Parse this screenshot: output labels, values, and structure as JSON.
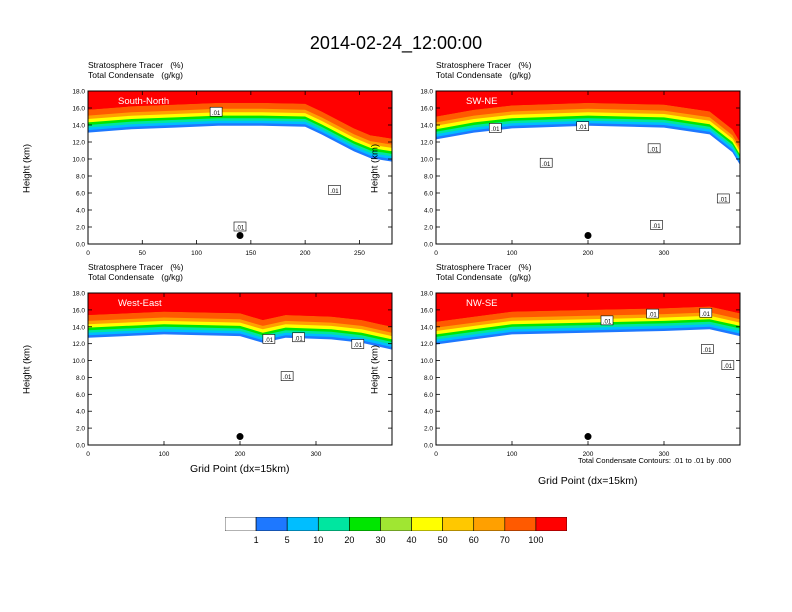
{
  "title": "2014-02-24_12:00:00",
  "panel_title_line1": "Stratosphere Tracer   (%)",
  "panel_title_line2": "Total Condensate   (g/kg)",
  "ylabel": "Height (km)",
  "xlabel": "Grid Point (dx=15km)",
  "contour_note": "Total Condensate Contours: .01 to .01 by .000",
  "contour_label": ".01",
  "colors": {
    "bins": [
      "#ffffff",
      "#1e78ff",
      "#00beff",
      "#00e6a0",
      "#00e600",
      "#a0e632",
      "#ffff00",
      "#ffc800",
      "#ffa000",
      "#ff5a00",
      "#ff0000"
    ]
  },
  "colorbar_labels": [
    "1",
    "5",
    "10",
    "20",
    "30",
    "40",
    "50",
    "60",
    "70",
    "100"
  ],
  "chart_data": [
    {
      "type": "heatmap",
      "name": "South-North",
      "xlim": [
        0,
        280
      ],
      "ylim": [
        0,
        18
      ],
      "xticks": [
        "0",
        "50",
        "100",
        "150",
        "200",
        "250"
      ],
      "xtick_values": [
        0,
        50,
        100,
        150,
        200,
        250
      ],
      "yticks": [
        "0.0",
        "2.0",
        "4.0",
        "6.0",
        "8.0",
        "10.0",
        "12.0",
        "14.0",
        "16.0",
        "18.0"
      ],
      "tropopause_km": [
        [
          0,
          15.8
        ],
        [
          40,
          16.2
        ],
        [
          80,
          16.4
        ],
        [
          120,
          16.6
        ],
        [
          160,
          16.6
        ],
        [
          200,
          16.5
        ],
        [
          215,
          15.6
        ],
        [
          230,
          14.6
        ],
        [
          245,
          13.6
        ],
        [
          260,
          12.8
        ],
        [
          280,
          12.4
        ]
      ],
      "point_marker": [
        140,
        1.0
      ],
      "contour_label_positions": [
        [
          118,
          15.5
        ],
        [
          140,
          2.0
        ],
        [
          227,
          6.3
        ]
      ]
    },
    {
      "type": "heatmap",
      "name": "SW-NE",
      "xlim": [
        0,
        400
      ],
      "ylim": [
        0,
        18
      ],
      "xticks": [
        "0",
        "100",
        "200",
        "300"
      ],
      "xtick_values": [
        0,
        100,
        200,
        300
      ],
      "yticks": [
        "0.0",
        "2.0",
        "4.0",
        "6.0",
        "8.0",
        "10.0",
        "12.0",
        "14.0",
        "16.0",
        "18.0"
      ],
      "tropopause_km": [
        [
          0,
          15.0
        ],
        [
          50,
          15.8
        ],
        [
          100,
          16.3
        ],
        [
          200,
          16.6
        ],
        [
          300,
          16.4
        ],
        [
          360,
          15.6
        ],
        [
          390,
          13.5
        ],
        [
          400,
          12.0
        ]
      ],
      "point_marker": [
        200,
        1.0
      ],
      "contour_label_positions": [
        [
          78,
          13.6
        ],
        [
          145,
          9.5
        ],
        [
          193,
          13.8
        ],
        [
          287,
          11.2
        ],
        [
          290,
          2.2
        ],
        [
          378,
          5.3
        ]
      ]
    },
    {
      "type": "heatmap",
      "name": "West-East",
      "xlim": [
        0,
        400
      ],
      "ylim": [
        0,
        18
      ],
      "xticks": [
        "0",
        "100",
        "200",
        "300"
      ],
      "xtick_values": [
        0,
        100,
        200,
        300
      ],
      "yticks": [
        "0.0",
        "2.0",
        "4.0",
        "6.0",
        "8.0",
        "10.0",
        "12.0",
        "14.0",
        "16.0",
        "18.0"
      ],
      "tropopause_km": [
        [
          0,
          15.4
        ],
        [
          100,
          15.8
        ],
        [
          200,
          15.6
        ],
        [
          230,
          14.8
        ],
        [
          260,
          15.4
        ],
        [
          320,
          15.2
        ],
        [
          360,
          14.8
        ],
        [
          400,
          14.0
        ]
      ],
      "point_marker": [
        200,
        1.0
      ],
      "contour_label_positions": [
        [
          238,
          12.5
        ],
        [
          277,
          12.7
        ],
        [
          262,
          8.1
        ],
        [
          355,
          11.9
        ]
      ]
    },
    {
      "type": "heatmap",
      "name": "NW-SE",
      "xlim": [
        0,
        400
      ],
      "ylim": [
        0,
        18
      ],
      "xticks": [
        "0",
        "100",
        "200",
        "300"
      ],
      "xtick_values": [
        0,
        100,
        200,
        300
      ],
      "yticks": [
        "0.0",
        "2.0",
        "4.0",
        "6.0",
        "8.0",
        "10.0",
        "12.0",
        "14.0",
        "16.0",
        "18.0"
      ],
      "tropopause_km": [
        [
          0,
          14.6
        ],
        [
          50,
          15.2
        ],
        [
          100,
          15.8
        ],
        [
          200,
          16.0
        ],
        [
          300,
          16.2
        ],
        [
          360,
          16.4
        ],
        [
          400,
          15.6
        ]
      ],
      "point_marker": [
        200,
        1.0
      ],
      "contour_label_positions": [
        [
          225,
          14.7
        ],
        [
          285,
          15.5
        ],
        [
          355,
          15.6
        ],
        [
          357,
          11.3
        ],
        [
          384,
          9.4
        ]
      ]
    }
  ]
}
